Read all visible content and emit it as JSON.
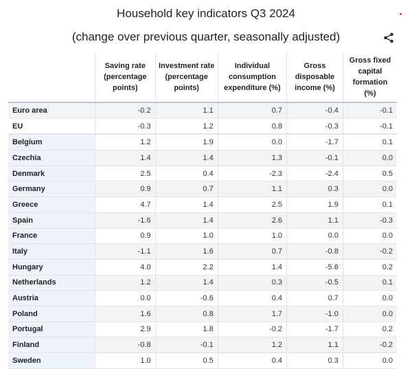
{
  "title": "Household key indicators Q3 2024",
  "subtitle": "(change over previous quarter, seasonally adjusted)",
  "share_icon": "share-icon",
  "table": {
    "headers": [
      "",
      "Saving rate (percentage points)",
      "Investment rate (percentage points)",
      "Individual consumption expenditure (%)",
      "Gross disposable income (%)",
      "Gross fixed capital formation (%)"
    ],
    "rows": [
      [
        "Euro area",
        "-0.2",
        "1.1",
        "0.7",
        "-0.4",
        "-0.1"
      ],
      [
        "EU",
        "-0.3",
        "1.2",
        "0.8",
        "-0.3",
        "-0.1"
      ],
      [
        "Belgium",
        "1.2",
        "1.9",
        "0.0",
        "-1.7",
        "0.1"
      ],
      [
        "Czechia",
        "1.4",
        "1.4",
        "1.3",
        "-0.1",
        "0.0"
      ],
      [
        "Denmark",
        "2.5",
        "0.4",
        "-2.3",
        "-2.4",
        "0.5"
      ],
      [
        "Germany",
        "0.9",
        "0.7",
        "1.1",
        "0.3",
        "0.0"
      ],
      [
        "Greece",
        "4.7",
        "1.4",
        "2.5",
        "1.9",
        "0.1"
      ],
      [
        "Spain",
        "-1.6",
        "1.4",
        "2.6",
        "1.1",
        "-0.3"
      ],
      [
        "France",
        "0.9",
        "1.0",
        "1.0",
        "0.0",
        "0.0"
      ],
      [
        "Italy",
        "-1.1",
        "1.6",
        "0.7",
        "-0.8",
        "-0.2"
      ],
      [
        "Hungary",
        "4.0",
        "2.2",
        "1.4",
        "-5.6",
        "0.2"
      ],
      [
        "Netherlands",
        "1.2",
        "1.4",
        "0.3",
        "-0.5",
        "0.1"
      ],
      [
        "Austria",
        "0.0",
        "-0.6",
        "0.4",
        "0.7",
        "0.0"
      ],
      [
        "Poland",
        "1.6",
        "0.8",
        "1.7",
        "-1.0",
        "0.0"
      ],
      [
        "Portugal",
        "2.9",
        "1.8",
        "-0.2",
        "-1.7",
        "0.2"
      ],
      [
        "Finland",
        "-0.8",
        "-0.1",
        "1.2",
        "1.1",
        "-0.2"
      ],
      [
        "Sweden",
        "1.0",
        "0.5",
        "0.4",
        "0.3",
        "0.0"
      ]
    ]
  }
}
